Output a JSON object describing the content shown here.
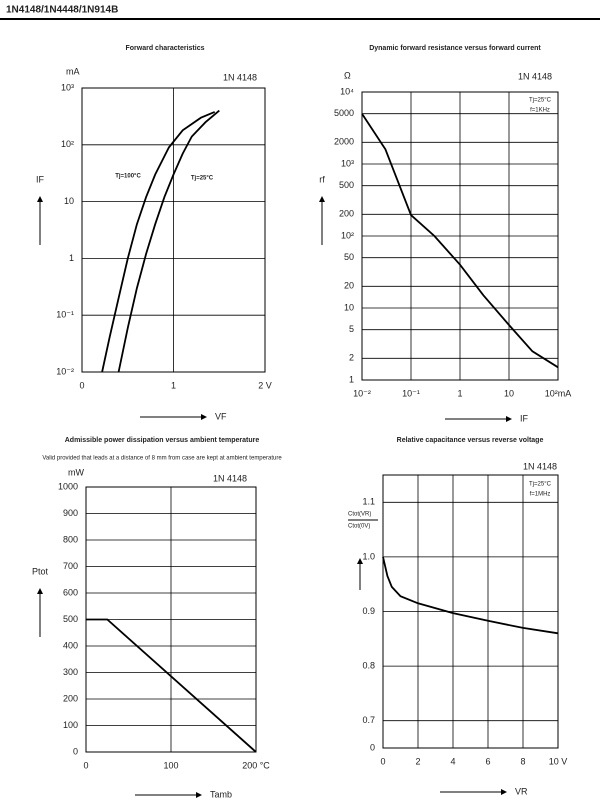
{
  "header": {
    "title": "1N4148/1N4448/1N914B"
  },
  "chart_data": [
    {
      "type": "line",
      "title": "Forward characteristics",
      "y_unit": "mA",
      "ylabel": "IF",
      "xlabel": "VF",
      "xlim": [
        0,
        2
      ],
      "xticks": [
        0,
        1,
        {
          "value": 2,
          "label": "2 V"
        }
      ],
      "ylim": [
        0.01,
        1000
      ],
      "yscale": "log",
      "yticks": [
        {
          "value": 0.01,
          "label": "10⁻²"
        },
        {
          "value": 0.1,
          "label": "10⁻¹"
        },
        1,
        10,
        {
          "value": 100,
          "label": "10²"
        },
        {
          "value": 1000,
          "label": "10³"
        }
      ],
      "grid": true,
      "annotations": [
        "1N 4148"
      ],
      "series": [
        {
          "name": "Tj=100°C",
          "color": "#000",
          "x": [
            0.22,
            0.3,
            0.4,
            0.5,
            0.6,
            0.7,
            0.8,
            0.95,
            1.1,
            1.3,
            1.45
          ],
          "values": [
            0.01,
            0.04,
            0.2,
            1,
            4,
            12,
            30,
            90,
            180,
            300,
            380
          ]
        },
        {
          "name": "Tj=25°C",
          "color": "#000",
          "x": [
            0.4,
            0.5,
            0.6,
            0.7,
            0.8,
            0.9,
            1.0,
            1.1,
            1.2,
            1.35,
            1.5
          ],
          "values": [
            0.01,
            0.06,
            0.3,
            1.2,
            4,
            12,
            30,
            70,
            140,
            250,
            400
          ]
        }
      ]
    },
    {
      "type": "line",
      "title": "Dynamic forward resistance versus forward current",
      "y_unit": "Ω",
      "ylabel": "rf",
      "xlabel": "IF",
      "xlim": [
        0.01,
        100
      ],
      "xscale": "log",
      "xticks": [
        {
          "value": 0.01,
          "label": "10⁻²"
        },
        {
          "value": 0.1,
          "label": "10⁻¹"
        },
        1,
        10,
        {
          "value": 100,
          "label": "10²mA"
        }
      ],
      "ylim": [
        1,
        10000
      ],
      "yscale": "log",
      "yticks": [
        1,
        2,
        5,
        10,
        20,
        50,
        {
          "value": 100,
          "label": "10²"
        },
        200,
        500,
        {
          "value": 1000,
          "label": "10³"
        },
        2000,
        5000,
        {
          "value": 10000,
          "label": "10⁴"
        }
      ],
      "grid": true,
      "annotations": [
        "1N 4148",
        "Tj=25°C",
        "f=1KHz"
      ],
      "series": [
        {
          "color": "#000",
          "x": [
            0.01,
            0.03,
            0.1,
            0.3,
            1,
            3,
            10,
            30,
            100
          ],
          "values": [
            5000,
            1600,
            195,
            100,
            40,
            15,
            5.8,
            2.5,
            1.5
          ]
        }
      ]
    },
    {
      "type": "line",
      "title": "Admissible power dissipation versus ambient temperature",
      "subtitle": "Valid provided that leads at a distance of 8 mm from case are kept at ambient temperature",
      "y_unit": "mW",
      "ylabel": "Ptot",
      "xlabel": "Tamb",
      "xlim": [
        0,
        200
      ],
      "xticks": [
        0,
        100,
        {
          "value": 200,
          "label": "200 °C"
        }
      ],
      "ylim": [
        0,
        1000
      ],
      "yticks": [
        0,
        100,
        200,
        300,
        400,
        500,
        600,
        700,
        800,
        900,
        1000
      ],
      "grid": true,
      "annotations": [
        "1N 4148"
      ],
      "series": [
        {
          "color": "#000",
          "x": [
            0,
            25,
            200
          ],
          "values": [
            500,
            500,
            0
          ]
        }
      ]
    },
    {
      "type": "line",
      "title": "Relative capacitance versus reverse voltage",
      "ylabel": [
        "Ctot(VR)",
        "Ctot(0V)"
      ],
      "xlabel": "VR",
      "xlim": [
        0,
        10
      ],
      "xticks": [
        0,
        2,
        4,
        6,
        8,
        {
          "value": 10,
          "label": "10 V"
        }
      ],
      "ylim": [
        0.65,
        1.15
      ],
      "yticks": [
        0.7,
        0.8,
        0.9,
        {
          "value": 1,
          "label": "1.0"
        },
        1.1
      ],
      "y_break_label": "0",
      "grid": true,
      "annotations": [
        "1N 4148",
        "Tj=25°C",
        "f=1MHz"
      ],
      "series": [
        {
          "color": "#000",
          "x": [
            0,
            0.25,
            0.5,
            1,
            2,
            4,
            6,
            8,
            10
          ],
          "values": [
            1.0,
            0.965,
            0.945,
            0.928,
            0.915,
            0.897,
            0.883,
            0.87,
            0.86
          ]
        }
      ]
    }
  ]
}
